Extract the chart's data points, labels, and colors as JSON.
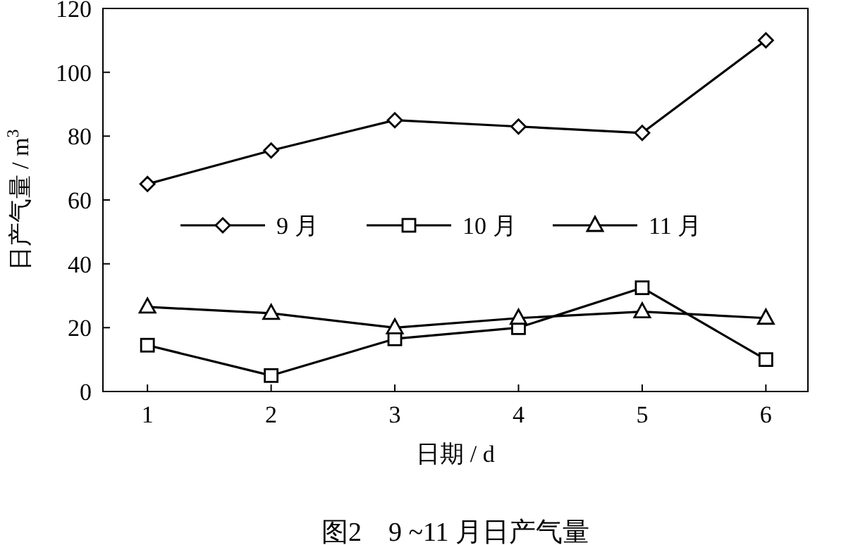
{
  "chart_data": {
    "type": "line",
    "title": "图2　9 ~11 月日产气量",
    "xlabel": "日期 / d",
    "ylabel": "日产气量 / m$^{3}$",
    "x": [
      1,
      2,
      3,
      4,
      5,
      6
    ],
    "xlim": [
      0.64,
      6.34
    ],
    "xticks": [
      1,
      2,
      3,
      4,
      5,
      6
    ],
    "ylim": [
      0,
      120
    ],
    "yticks": [
      0,
      20,
      40,
      60,
      80,
      100,
      120
    ],
    "legend": "center",
    "grid": false,
    "line_style": "solid",
    "series": [
      {
        "name": "9 月",
        "color": "#000000",
        "marker": "diamond",
        "values": [
          65,
          75.5,
          85,
          83,
          81,
          110
        ]
      },
      {
        "name": "10 月",
        "color": "#000000",
        "marker": "square",
        "values": [
          14.5,
          5,
          16.5,
          20,
          32.5,
          10
        ]
      },
      {
        "name": "11 月",
        "color": "#000000",
        "marker": "triangle",
        "values": [
          26.5,
          24.5,
          20,
          23,
          25,
          23
        ]
      }
    ]
  }
}
